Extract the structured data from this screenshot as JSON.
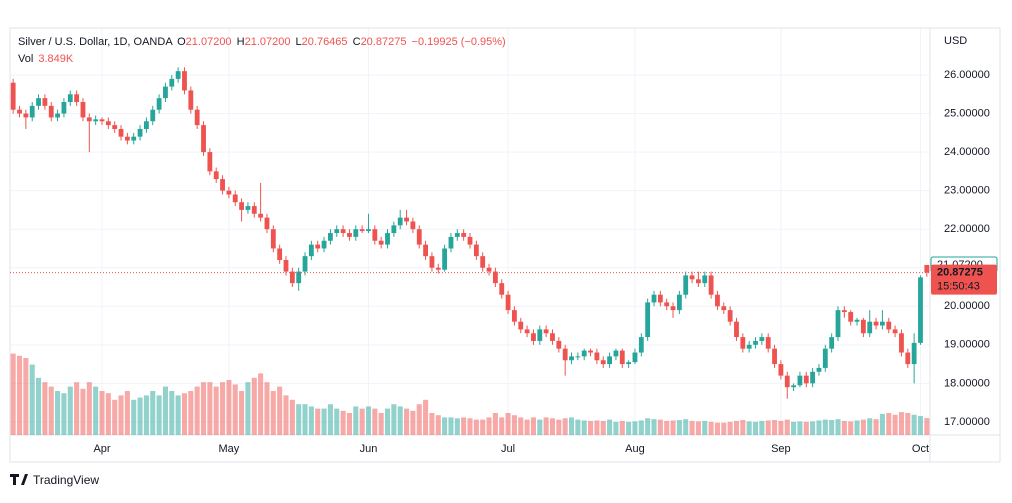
{
  "chart_data": {
    "type": "candlestick",
    "legend": {
      "symbol": "Silver / U.S. Dollar, 1D, OANDA",
      "o": "O",
      "open": "21.07200",
      "h": "H",
      "high": "21.07200",
      "l": "L",
      "low": "20.76465",
      "c": "C",
      "close": "20.87275",
      "change": "−0.19925 (−0.95%)",
      "vol": "Vol",
      "vol_value": "3.849K"
    },
    "currency": "USD",
    "brand": "TradingView",
    "countdown": "15:50:43",
    "up_color": "#26a69a",
    "down_color": "#ef5350",
    "xlim": [
      -0.5,
      144.5
    ],
    "xticks": [
      {
        "value": 14,
        "label": "Apr"
      },
      {
        "value": 34,
        "label": "May"
      },
      {
        "value": 56,
        "label": "Jun"
      },
      {
        "value": 78,
        "label": "Jul"
      },
      {
        "value": 98,
        "label": "Aug"
      },
      {
        "value": 121,
        "label": "Sep"
      },
      {
        "value": 143,
        "label": "Oct"
      }
    ],
    "ylim": [
      16.66,
      27.22
    ],
    "yticks": [
      {
        "value": 17,
        "label": "17.00000"
      },
      {
        "value": 18,
        "label": "18.00000"
      },
      {
        "value": 19,
        "label": "19.00000"
      },
      {
        "value": 20,
        "label": "20.00000"
      },
      {
        "value": 21,
        "label": "21.00000"
      },
      {
        "value": 22,
        "label": "22.00000"
      },
      {
        "value": 23,
        "label": "23.00000"
      },
      {
        "value": 24,
        "label": "24.00000"
      },
      {
        "value": 25,
        "label": "25.00000"
      },
      {
        "value": 26,
        "label": "26.00000"
      }
    ],
    "price_labels": [
      {
        "value": 21.072,
        "label": "21.07200"
      },
      {
        "value": 20.87275,
        "label": "20.87275"
      }
    ],
    "grid": true,
    "candles": [
      [
        25.8,
        25.9,
        25.0,
        25.1
      ],
      [
        25.1,
        25.2,
        24.9,
        25.0
      ],
      [
        25.0,
        25.1,
        24.6,
        24.9
      ],
      [
        24.9,
        25.3,
        24.8,
        25.2
      ],
      [
        25.2,
        25.5,
        25.1,
        25.4
      ],
      [
        25.4,
        25.5,
        25.1,
        25.2
      ],
      [
        25.2,
        25.3,
        24.8,
        24.9
      ],
      [
        24.9,
        25.1,
        24.8,
        25.0
      ],
      [
        25.0,
        25.4,
        24.9,
        25.3
      ],
      [
        25.3,
        25.6,
        25.2,
        25.5
      ],
      [
        25.5,
        25.6,
        25.2,
        25.3
      ],
      [
        25.3,
        25.4,
        24.8,
        24.9
      ],
      [
        24.9,
        25.0,
        24.0,
        24.8
      ],
      [
        24.8,
        24.95,
        24.7,
        24.85
      ],
      [
        24.85,
        24.9,
        24.7,
        24.8
      ],
      [
        24.8,
        24.9,
        24.6,
        24.7
      ],
      [
        24.7,
        24.8,
        24.5,
        24.6
      ],
      [
        24.6,
        24.7,
        24.3,
        24.4
      ],
      [
        24.4,
        24.5,
        24.2,
        24.3
      ],
      [
        24.3,
        24.5,
        24.2,
        24.4
      ],
      [
        24.4,
        24.7,
        24.3,
        24.6
      ],
      [
        24.6,
        24.9,
        24.5,
        24.8
      ],
      [
        24.8,
        25.2,
        24.7,
        25.1
      ],
      [
        25.1,
        25.5,
        25.0,
        25.4
      ],
      [
        25.4,
        25.8,
        25.3,
        25.7
      ],
      [
        25.7,
        26.0,
        25.6,
        25.9
      ],
      [
        25.9,
        26.2,
        25.8,
        26.1
      ],
      [
        26.1,
        26.2,
        25.5,
        25.6
      ],
      [
        25.6,
        25.7,
        25.0,
        25.1
      ],
      [
        25.1,
        25.2,
        24.6,
        24.7
      ],
      [
        24.7,
        24.8,
        23.9,
        24.0
      ],
      [
        24.0,
        24.1,
        23.4,
        23.5
      ],
      [
        23.5,
        23.6,
        23.2,
        23.3
      ],
      [
        23.3,
        23.4,
        22.9,
        23.0
      ],
      [
        23.0,
        23.1,
        22.8,
        22.9
      ],
      [
        22.9,
        23.0,
        22.6,
        22.7
      ],
      [
        22.7,
        22.8,
        22.2,
        22.5
      ],
      [
        22.5,
        22.7,
        22.4,
        22.6
      ],
      [
        22.6,
        22.7,
        22.3,
        22.4
      ],
      [
        22.4,
        23.2,
        22.2,
        22.3
      ],
      [
        22.3,
        22.4,
        21.9,
        22.0
      ],
      [
        22.0,
        22.1,
        21.4,
        21.5
      ],
      [
        21.5,
        21.6,
        21.1,
        21.2
      ],
      [
        21.2,
        21.3,
        20.8,
        20.9
      ],
      [
        20.9,
        21.0,
        20.5,
        20.6
      ],
      [
        20.6,
        21.0,
        20.4,
        20.9
      ],
      [
        20.9,
        21.4,
        20.8,
        21.3
      ],
      [
        21.3,
        21.7,
        21.2,
        21.6
      ],
      [
        21.6,
        21.7,
        21.4,
        21.5
      ],
      [
        21.5,
        21.8,
        21.4,
        21.7
      ],
      [
        21.7,
        22.0,
        21.6,
        21.9
      ],
      [
        21.9,
        22.1,
        21.8,
        22.0
      ],
      [
        22.0,
        22.1,
        21.8,
        21.9
      ],
      [
        21.9,
        22.0,
        21.7,
        21.8
      ],
      [
        21.8,
        22.1,
        21.7,
        22.0
      ],
      [
        22.0,
        22.1,
        21.9,
        21.95
      ],
      [
        21.95,
        22.4,
        21.9,
        22.0
      ],
      [
        22.0,
        22.1,
        21.6,
        21.7
      ],
      [
        21.7,
        21.8,
        21.5,
        21.6
      ],
      [
        21.6,
        22.0,
        21.5,
        21.9
      ],
      [
        21.9,
        22.2,
        21.8,
        22.1
      ],
      [
        22.1,
        22.5,
        22.0,
        22.3
      ],
      [
        22.3,
        22.5,
        22.1,
        22.2
      ],
      [
        22.2,
        22.3,
        21.9,
        22.0
      ],
      [
        22.0,
        22.1,
        21.5,
        21.6
      ],
      [
        21.6,
        21.7,
        21.2,
        21.3
      ],
      [
        21.3,
        21.4,
        20.9,
        21.0
      ],
      [
        21.0,
        21.1,
        20.85,
        20.95
      ],
      [
        20.95,
        21.6,
        20.9,
        21.5
      ],
      [
        21.5,
        21.9,
        21.4,
        21.8
      ],
      [
        21.8,
        22.0,
        21.7,
        21.9
      ],
      [
        21.9,
        22.0,
        21.7,
        21.8
      ],
      [
        21.8,
        21.9,
        21.5,
        21.6
      ],
      [
        21.6,
        21.7,
        21.2,
        21.3
      ],
      [
        21.3,
        21.4,
        20.9,
        21.0
      ],
      [
        21.0,
        21.1,
        20.8,
        20.9
      ],
      [
        20.9,
        21.0,
        20.5,
        20.6
      ],
      [
        20.6,
        20.7,
        20.2,
        20.3
      ],
      [
        20.3,
        20.4,
        19.8,
        19.9
      ],
      [
        19.9,
        20.0,
        19.5,
        19.6
      ],
      [
        19.6,
        19.7,
        19.3,
        19.4
      ],
      [
        19.4,
        19.5,
        19.2,
        19.3
      ],
      [
        19.3,
        19.4,
        19.0,
        19.1
      ],
      [
        19.1,
        19.5,
        19.0,
        19.4
      ],
      [
        19.4,
        19.5,
        19.2,
        19.3
      ],
      [
        19.3,
        19.4,
        19.0,
        19.1
      ],
      [
        19.1,
        19.2,
        18.8,
        18.9
      ],
      [
        18.9,
        19.0,
        18.2,
        18.6
      ],
      [
        18.6,
        18.8,
        18.5,
        18.7
      ],
      [
        18.7,
        18.8,
        18.6,
        18.7
      ],
      [
        18.7,
        18.9,
        18.6,
        18.85
      ],
      [
        18.85,
        18.9,
        18.7,
        18.8
      ],
      [
        18.8,
        18.9,
        18.5,
        18.6
      ],
      [
        18.6,
        18.7,
        18.4,
        18.5
      ],
      [
        18.5,
        18.8,
        18.4,
        18.7
      ],
      [
        18.7,
        18.9,
        18.6,
        18.85
      ],
      [
        18.85,
        18.9,
        18.4,
        18.5
      ],
      [
        18.5,
        18.6,
        18.4,
        18.55
      ],
      [
        18.55,
        18.9,
        18.5,
        18.8
      ],
      [
        18.8,
        19.3,
        18.7,
        19.2
      ],
      [
        19.2,
        20.2,
        19.1,
        20.1
      ],
      [
        20.1,
        20.4,
        20.0,
        20.3
      ],
      [
        20.3,
        20.4,
        20.0,
        20.1
      ],
      [
        20.1,
        20.2,
        19.9,
        20.0
      ],
      [
        20.0,
        20.1,
        19.7,
        19.9
      ],
      [
        19.9,
        20.4,
        19.8,
        20.3
      ],
      [
        20.3,
        20.9,
        20.2,
        20.8
      ],
      [
        20.8,
        20.9,
        20.6,
        20.7
      ],
      [
        20.7,
        20.9,
        20.5,
        20.6
      ],
      [
        20.6,
        20.9,
        20.5,
        20.8
      ],
      [
        20.8,
        20.9,
        20.2,
        20.3
      ],
      [
        20.3,
        20.4,
        19.9,
        20.0
      ],
      [
        20.0,
        20.1,
        19.8,
        19.9
      ],
      [
        19.9,
        20.0,
        19.5,
        19.6
      ],
      [
        19.6,
        19.7,
        19.1,
        19.2
      ],
      [
        19.2,
        19.3,
        18.8,
        18.9
      ],
      [
        18.9,
        19.1,
        18.8,
        19.0
      ],
      [
        19.0,
        19.2,
        18.9,
        19.1
      ],
      [
        19.1,
        19.3,
        19.0,
        19.2
      ],
      [
        19.2,
        19.3,
        18.8,
        18.9
      ],
      [
        18.9,
        19.0,
        18.4,
        18.5
      ],
      [
        18.5,
        18.6,
        18.1,
        18.2
      ],
      [
        18.2,
        18.3,
        17.6,
        17.9
      ],
      [
        17.9,
        18.0,
        17.8,
        17.95
      ],
      [
        17.95,
        18.3,
        17.9,
        18.2
      ],
      [
        18.2,
        18.3,
        17.9,
        18.0
      ],
      [
        18.0,
        18.4,
        17.9,
        18.3
      ],
      [
        18.3,
        18.5,
        18.2,
        18.4
      ],
      [
        18.4,
        19.0,
        18.3,
        18.9
      ],
      [
        18.9,
        19.3,
        18.8,
        19.2
      ],
      [
        19.2,
        20.0,
        19.1,
        19.9
      ],
      [
        19.9,
        20.0,
        19.7,
        19.85
      ],
      [
        19.85,
        19.9,
        19.5,
        19.6
      ],
      [
        19.6,
        19.7,
        19.5,
        19.65
      ],
      [
        19.65,
        19.7,
        19.2,
        19.3
      ],
      [
        19.3,
        19.9,
        19.2,
        19.6
      ],
      [
        19.6,
        19.7,
        19.4,
        19.5
      ],
      [
        19.5,
        19.9,
        19.4,
        19.6
      ],
      [
        19.6,
        19.7,
        19.3,
        19.4
      ],
      [
        19.4,
        19.5,
        19.2,
        19.3
      ],
      [
        19.3,
        19.4,
        18.7,
        18.8
      ],
      [
        18.8,
        18.9,
        18.4,
        18.5
      ],
      [
        18.5,
        19.3,
        18.0,
        19.05
      ],
      [
        19.05,
        20.8,
        19.0,
        20.75
      ],
      [
        21.072,
        21.072,
        20.76465,
        20.87275
      ]
    ],
    "volume": [
      18.5,
      18,
      17.5,
      16,
      13,
      12,
      11,
      10,
      9.5,
      11,
      12,
      10.5,
      12,
      11,
      10,
      9.5,
      8,
      9,
      10,
      8,
      8.5,
      9,
      10,
      9,
      11,
      10,
      9,
      9.5,
      10,
      11,
      12,
      12,
      11,
      12,
      12.5,
      11.5,
      10,
      12,
      13,
      14,
      12,
      10,
      11,
      9,
      8,
      7,
      7,
      6.5,
      6,
      6,
      7,
      6,
      5.5,
      5,
      6.5,
      6,
      6.5,
      6,
      5,
      6,
      7,
      6.5,
      6,
      5.5,
      7,
      8,
      5,
      4.5,
      4,
      4,
      3.8,
      4,
      3.8,
      3.5,
      3.5,
      4,
      5,
      4,
      5,
      4.5,
      4,
      3.5,
      4,
      3.5,
      4,
      3.8,
      3.5,
      3.8,
      4,
      3.5,
      3.3,
      3.2,
      3.3,
      3.2,
      3.5,
      3,
      3.2,
      3,
      3.1,
      3.3,
      3.8,
      3.6,
      3.5,
      3.2,
      3.3,
      3.4,
      3.6,
      3.2,
      3.1,
      3.2,
      3.0,
      2.8,
      2.8,
      3.0,
      3.2,
      3.4,
      3.1,
      3.0,
      3.2,
      3.3,
      3.4,
      3.2,
      3.5,
      3.0,
      3.1,
      3.0,
      3.1,
      3.3,
      3.5,
      3.4,
      3.6,
      3.2,
      3.1,
      3.3,
      3.5,
      3.8,
      3.6,
      4.8,
      5,
      4.6,
      5.2,
      5,
      4.6,
      4.3,
      3.849
    ]
  }
}
